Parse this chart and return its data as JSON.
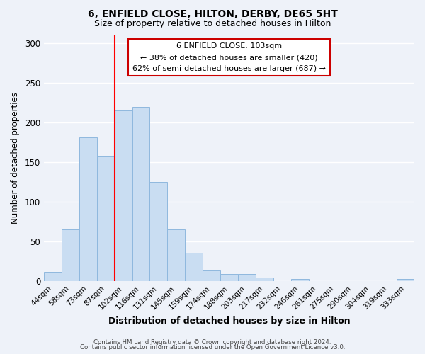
{
  "title": "6, ENFIELD CLOSE, HILTON, DERBY, DE65 5HT",
  "subtitle": "Size of property relative to detached houses in Hilton",
  "xlabel": "Distribution of detached houses by size in Hilton",
  "ylabel": "Number of detached properties",
  "bin_labels": [
    "44sqm",
    "58sqm",
    "73sqm",
    "87sqm",
    "102sqm",
    "116sqm",
    "131sqm",
    "145sqm",
    "159sqm",
    "174sqm",
    "188sqm",
    "203sqm",
    "217sqm",
    "232sqm",
    "246sqm",
    "261sqm",
    "275sqm",
    "290sqm",
    "304sqm",
    "319sqm",
    "333sqm"
  ],
  "bar_values": [
    12,
    65,
    181,
    157,
    215,
    220,
    125,
    65,
    36,
    13,
    9,
    9,
    4,
    0,
    3,
    0,
    0,
    0,
    0,
    0,
    3
  ],
  "bar_color": "#c9ddf2",
  "bar_edge_color": "#8fb8de",
  "red_line_index": 4,
  "ylim": [
    0,
    310
  ],
  "yticks": [
    0,
    50,
    100,
    150,
    200,
    250,
    300
  ],
  "annotation_title": "6 ENFIELD CLOSE: 103sqm",
  "annotation_line1": "← 38% of detached houses are smaller (420)",
  "annotation_line2": "62% of semi-detached houses are larger (687) →",
  "annotation_box_color": "#ffffff",
  "annotation_box_edge": "#cc0000",
  "footer_line1": "Contains HM Land Registry data © Crown copyright and database right 2024.",
  "footer_line2": "Contains public sector information licensed under the Open Government Licence v3.0.",
  "background_color": "#eef2f9",
  "grid_color": "#ffffff",
  "title_fontsize": 10,
  "subtitle_fontsize": 9
}
